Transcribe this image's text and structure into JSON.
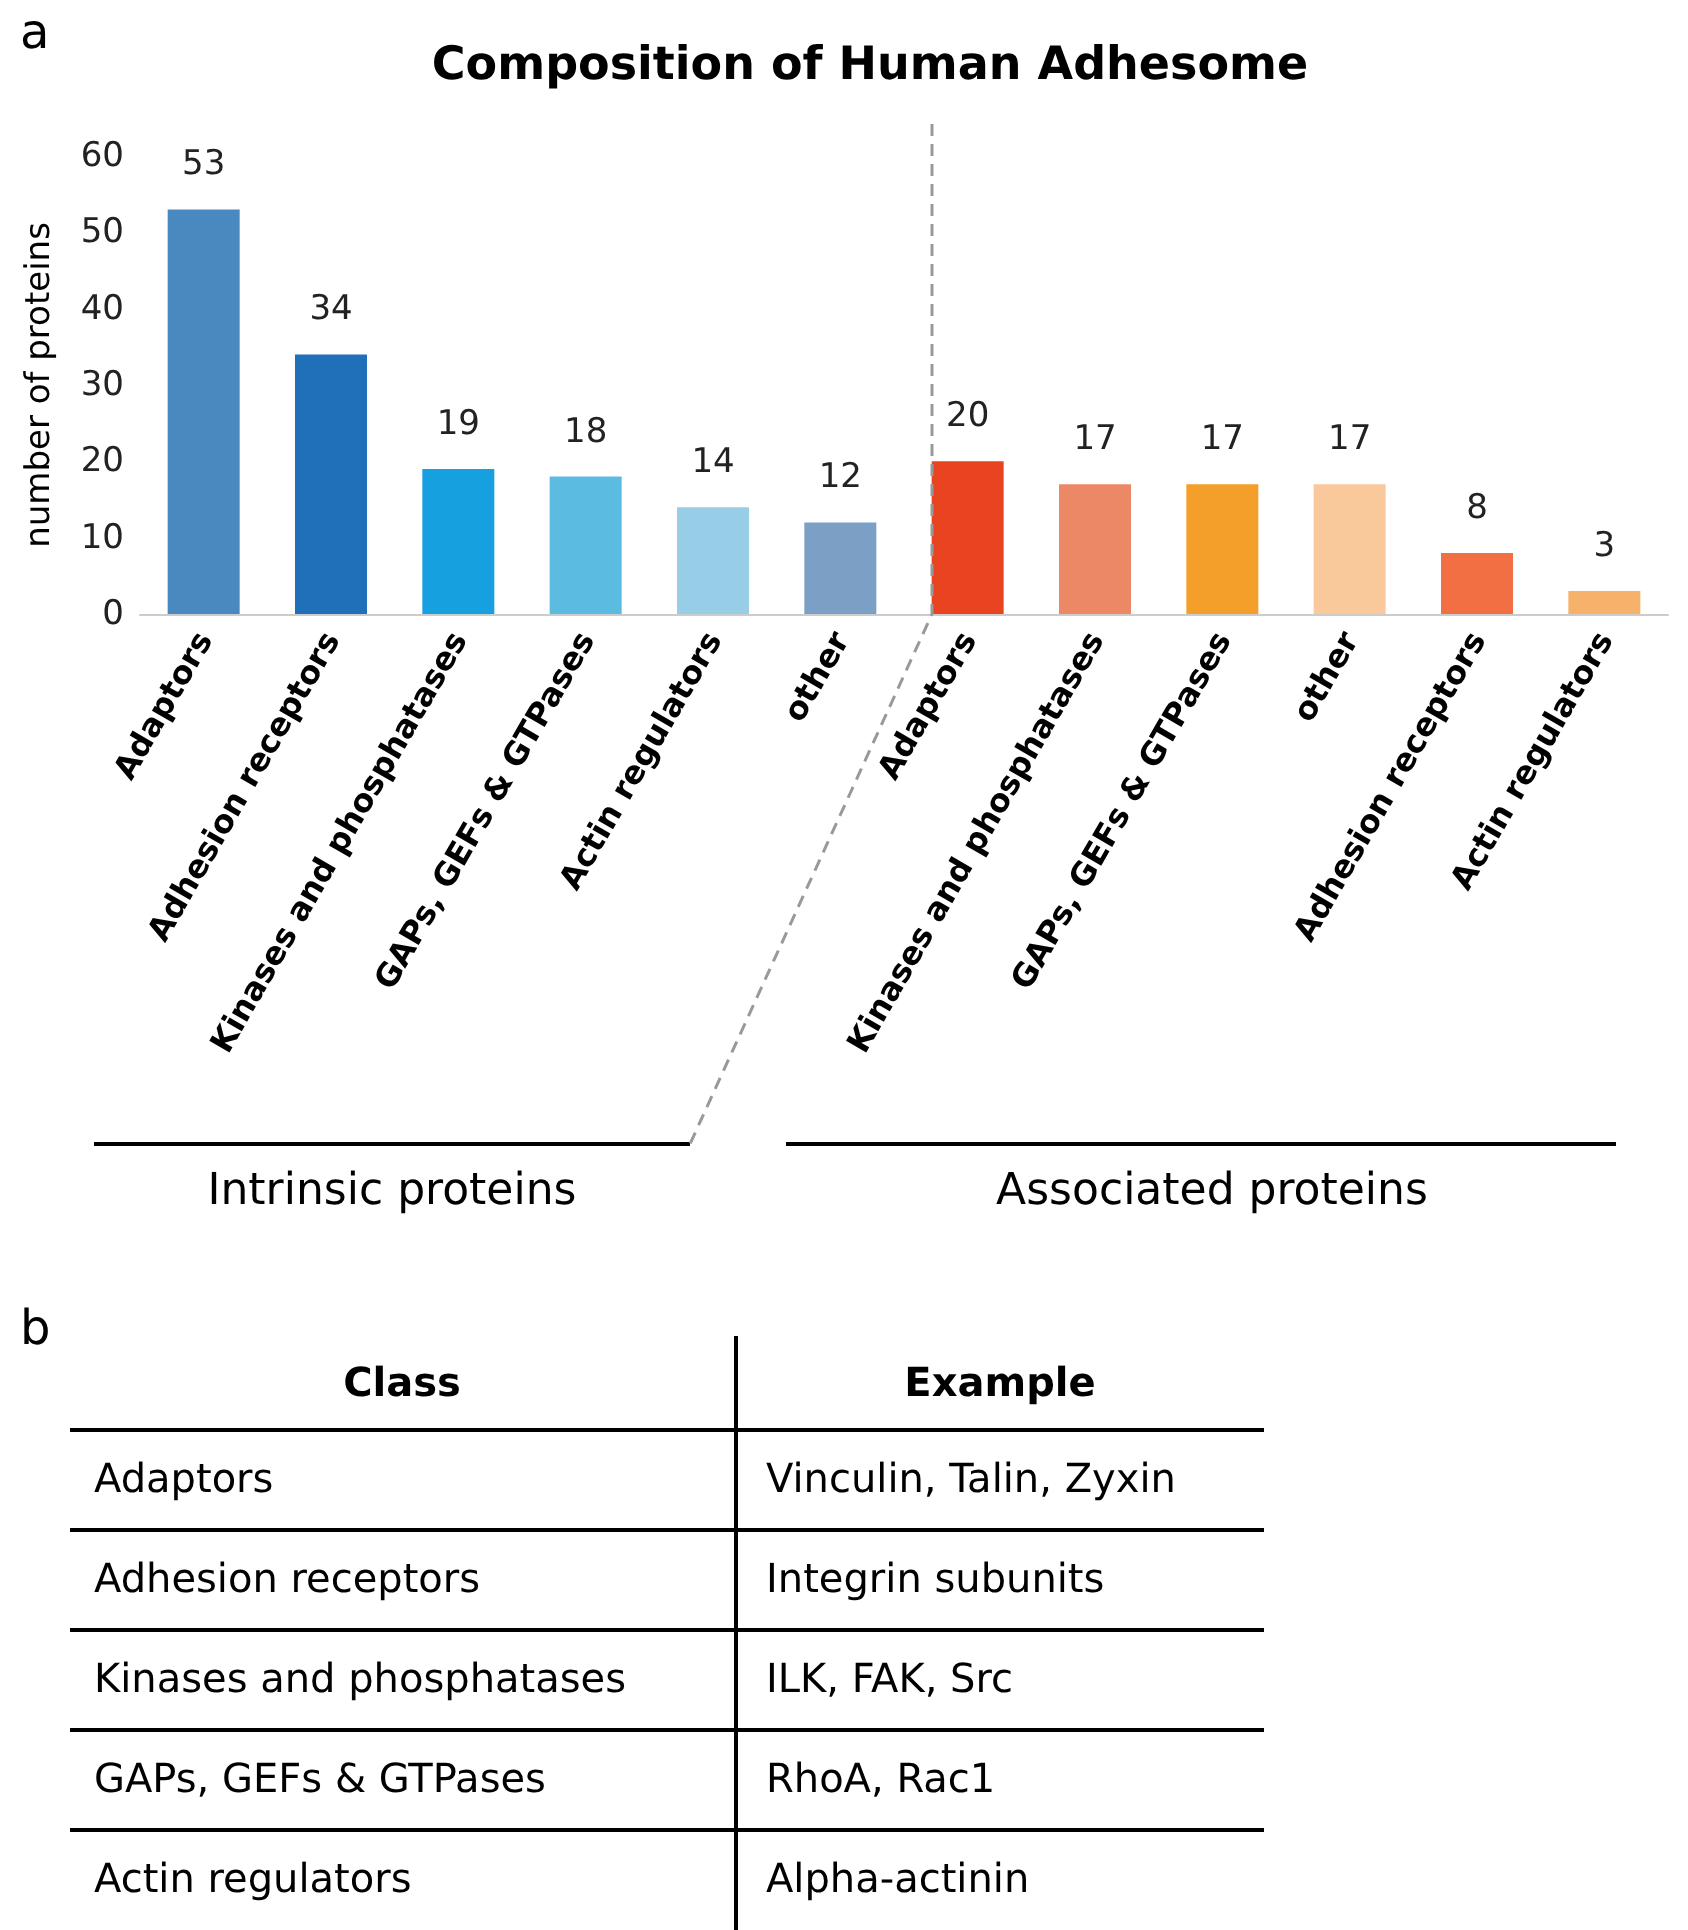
{
  "chart_data": [
    {
      "type": "bar",
      "title": "Composition of Human Adhesome",
      "ylabel": "number of proteins",
      "categories": [
        "Adaptors",
        "Adhesion receptors",
        "Kinases and phosphatases",
        "GAPs, GEFs & GTPases",
        "Actin regulators",
        "other",
        "Adaptors",
        "Kinases and phosphatases",
        "GAPs, GEFs & GTPases",
        "other",
        "Adhesion receptors",
        "Actin regulators"
      ],
      "values": [
        53,
        34,
        19,
        18,
        14,
        12,
        20,
        17,
        17,
        17,
        8,
        3
      ],
      "colors": [
        "#4a89c0",
        "#1f70b8",
        "#17a0e0",
        "#5cbbe0",
        "#98cde8",
        "#7b9fc5",
        "#e94421",
        "#ec8865",
        "#f59f2b",
        "#f9c99b",
        "#f26f43",
        "#f6b26b"
      ],
      "ylim": [
        0,
        60
      ],
      "yticks": [
        0,
        10,
        20,
        30,
        40,
        50,
        60
      ],
      "grid": false,
      "data_labels": true,
      "annotations": [
        "a",
        "Intrinsic proteins",
        "Associated proteins"
      ]
    },
    {
      "type": "other",
      "annotations": [
        "b",
        "Class",
        "Example",
        "Adaptors",
        "Vinculin, Talin, Zyxin",
        "Adhesion receptors",
        "Integrin subunits",
        "Kinases and phosphatases",
        "ILK, FAK, Src",
        "GAPs, GEFs & GTPases",
        "RhoA, Rac1",
        "Actin regulators",
        "Alpha-actinin"
      ]
    }
  ]
}
